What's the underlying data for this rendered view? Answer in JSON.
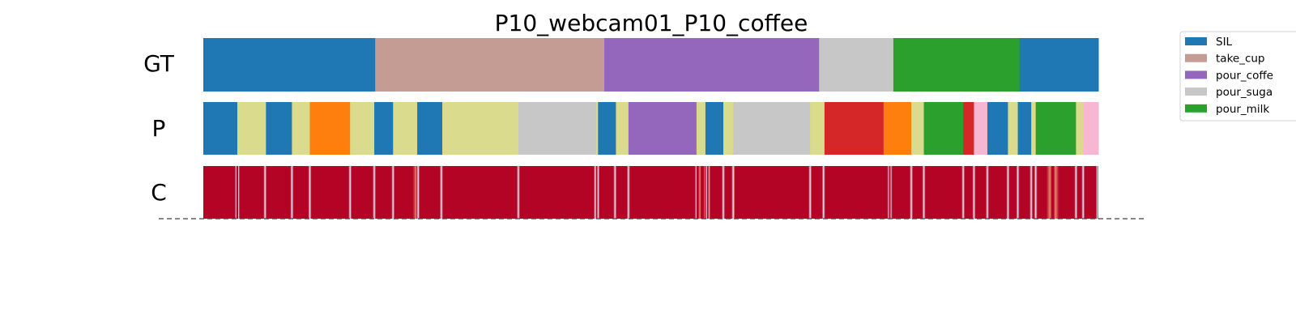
{
  "chart_data": {
    "type": "segmentation",
    "title": "P10_webcam01_P10_coffee",
    "x_range": [
      0,
      1
    ],
    "rows": [
      {
        "label": "GT",
        "segments": [
          {
            "start": 0.0,
            "end": 0.192,
            "cls": "SIL"
          },
          {
            "start": 0.192,
            "end": 0.448,
            "cls": "take_cup"
          },
          {
            "start": 0.448,
            "end": 0.688,
            "cls": "pour_coffee"
          },
          {
            "start": 0.688,
            "end": 0.771,
            "cls": "pour_sugar"
          },
          {
            "start": 0.771,
            "end": 0.912,
            "cls": "pour_milk"
          },
          {
            "start": 0.912,
            "end": 1.0,
            "cls": "SIL"
          }
        ]
      },
      {
        "label": "P",
        "segments": [
          {
            "start": 0.0,
            "end": 0.038,
            "cls": "SIL"
          },
          {
            "start": 0.038,
            "end": 0.07,
            "cls": "olive"
          },
          {
            "start": 0.07,
            "end": 0.099,
            "cls": "SIL"
          },
          {
            "start": 0.099,
            "end": 0.119,
            "cls": "olive"
          },
          {
            "start": 0.119,
            "end": 0.164,
            "cls": "orange"
          },
          {
            "start": 0.164,
            "end": 0.191,
            "cls": "olive"
          },
          {
            "start": 0.191,
            "end": 0.212,
            "cls": "SIL"
          },
          {
            "start": 0.212,
            "end": 0.239,
            "cls": "olive"
          },
          {
            "start": 0.239,
            "end": 0.267,
            "cls": "SIL"
          },
          {
            "start": 0.267,
            "end": 0.352,
            "cls": "olive"
          },
          {
            "start": 0.352,
            "end": 0.439,
            "cls": "pour_sugar"
          },
          {
            "start": 0.439,
            "end": 0.441,
            "cls": "olive"
          },
          {
            "start": 0.441,
            "end": 0.461,
            "cls": "SIL"
          },
          {
            "start": 0.461,
            "end": 0.475,
            "cls": "olive"
          },
          {
            "start": 0.475,
            "end": 0.551,
            "cls": "pour_coffee"
          },
          {
            "start": 0.551,
            "end": 0.561,
            "cls": "olive"
          },
          {
            "start": 0.561,
            "end": 0.581,
            "cls": "SIL"
          },
          {
            "start": 0.581,
            "end": 0.592,
            "cls": "olive"
          },
          {
            "start": 0.592,
            "end": 0.678,
            "cls": "pour_sugar"
          },
          {
            "start": 0.678,
            "end": 0.694,
            "cls": "olive"
          },
          {
            "start": 0.694,
            "end": 0.76,
            "cls": "red"
          },
          {
            "start": 0.76,
            "end": 0.791,
            "cls": "orange"
          },
          {
            "start": 0.791,
            "end": 0.805,
            "cls": "olive"
          },
          {
            "start": 0.805,
            "end": 0.849,
            "cls": "pour_milk"
          },
          {
            "start": 0.849,
            "end": 0.861,
            "cls": "red"
          },
          {
            "start": 0.861,
            "end": 0.876,
            "cls": "pink"
          },
          {
            "start": 0.876,
            "end": 0.899,
            "cls": "SIL"
          },
          {
            "start": 0.899,
            "end": 0.91,
            "cls": "olive"
          },
          {
            "start": 0.91,
            "end": 0.925,
            "cls": "SIL"
          },
          {
            "start": 0.925,
            "end": 0.93,
            "cls": "olive"
          },
          {
            "start": 0.93,
            "end": 0.975,
            "cls": "pour_milk"
          },
          {
            "start": 0.975,
            "end": 0.983,
            "cls": "olive"
          },
          {
            "start": 0.983,
            "end": 1.0,
            "cls": "pink"
          }
        ]
      },
      {
        "label": "C",
        "colormap": "coolwarm",
        "low_confidence_at": [
          0.037,
          0.039,
          0.069,
          0.099,
          0.119,
          0.164,
          0.191,
          0.212,
          0.24,
          0.266,
          0.352,
          0.438,
          0.441,
          0.46,
          0.475,
          0.551,
          0.562,
          0.565,
          0.581,
          0.592,
          0.678,
          0.693,
          0.766,
          0.768,
          0.791,
          0.805,
          0.849,
          0.861,
          0.876,
          0.899,
          0.91,
          0.925,
          0.93,
          0.975,
          0.983,
          0.999
        ],
        "medium_confidence_at": [
          0.238,
          0.555,
          0.56,
          0.565,
          0.593,
          0.946,
          0.952
        ]
      }
    ],
    "legend": {
      "placement": "upper-right, outside",
      "entries": [
        {
          "label": "SIL",
          "cls": "SIL"
        },
        {
          "label": "take_cup",
          "cls": "take_cup"
        },
        {
          "label": "pour_coffe",
          "cls": "pour_coffee"
        },
        {
          "label": "pour_suga",
          "cls": "pour_sugar"
        },
        {
          "label": "pour_milk",
          "cls": "pour_milk"
        }
      ]
    },
    "colors": {
      "SIL": "#1f77b4",
      "take_cup": "#c49c94",
      "pour_coffee": "#9467bd",
      "pour_sugar": "#c7c7c7",
      "pour_milk": "#2ca02c",
      "olive": "#dbdb8d",
      "orange": "#ff7f0e",
      "red": "#d62728",
      "pink": "#f7b6d2",
      "conf_high": "#b40426",
      "conf_low": "#3b4cc0"
    },
    "baseline": "dashed"
  }
}
